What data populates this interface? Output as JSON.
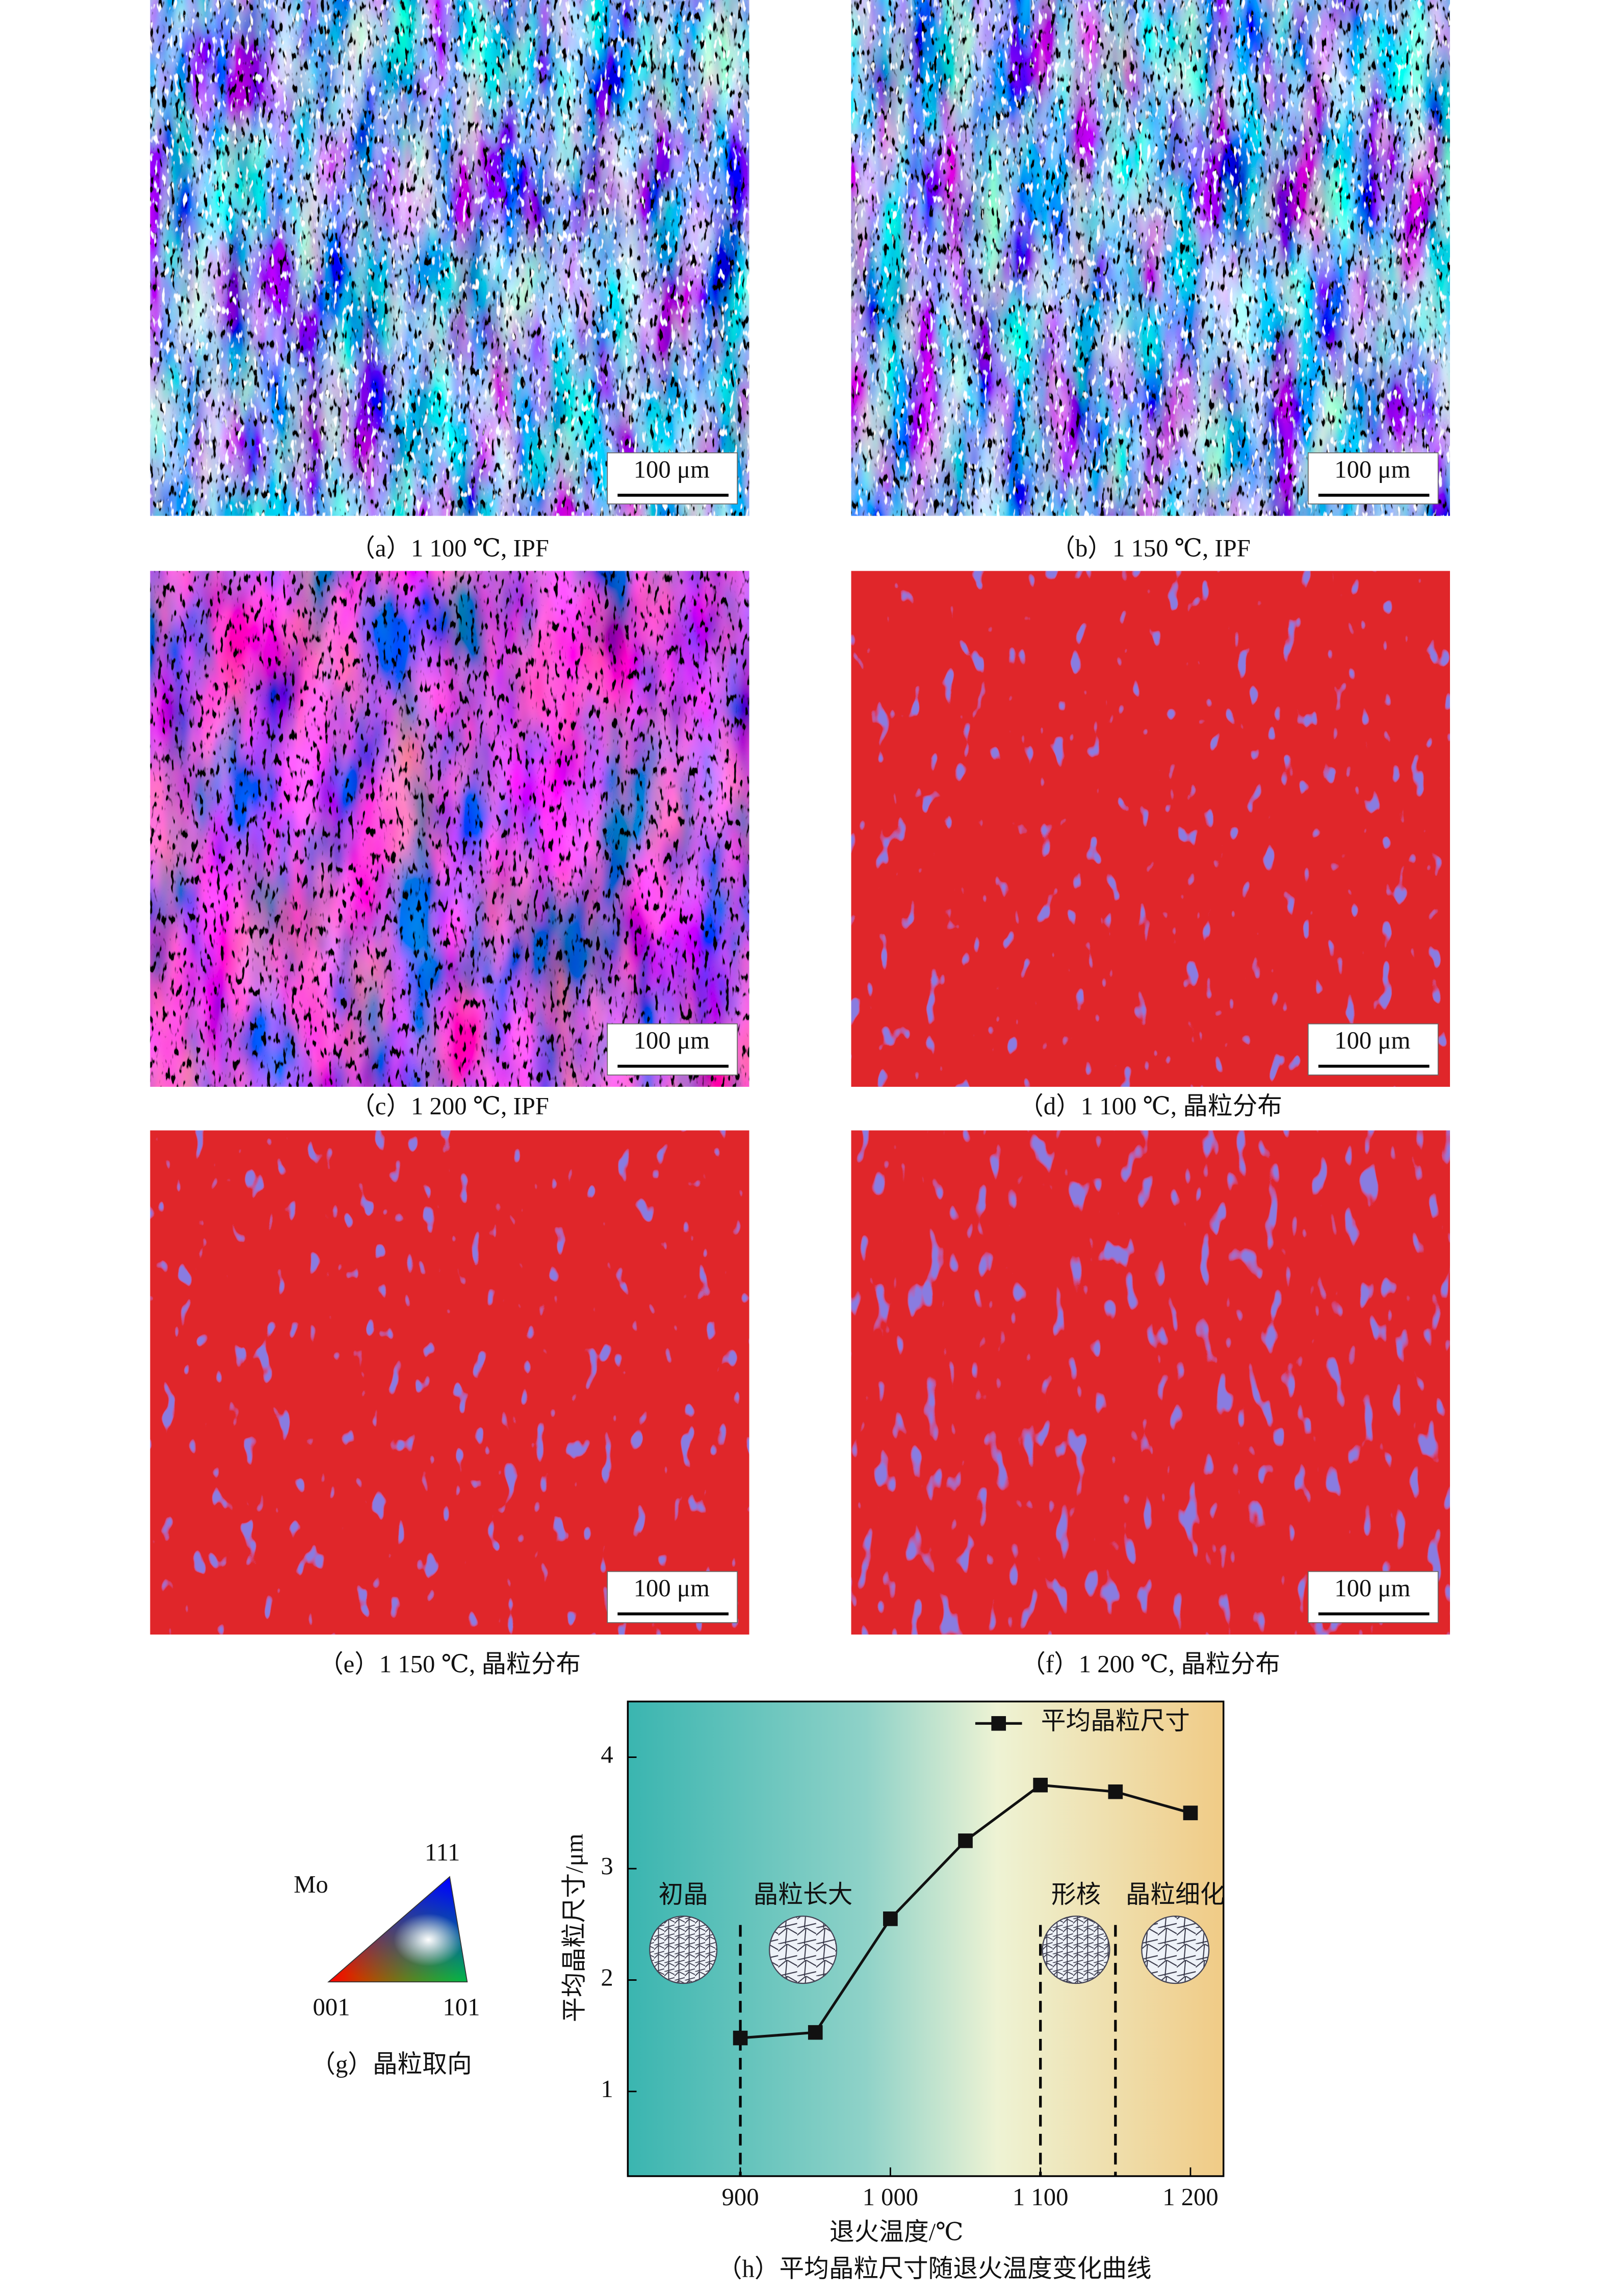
{
  "panels": [
    {
      "caption": "（a）1 100 ℃, IPF",
      "scale_bar": "100 μm"
    },
    {
      "caption": "（b）1 150 ℃, IPF",
      "scale_bar": "100 μm"
    },
    {
      "caption": "（c）1 200 ℃, IPF",
      "scale_bar": "100 μm"
    },
    {
      "caption": "（d）1 100 ℃, 晶粒分布",
      "scale_bar": "100 μm"
    },
    {
      "caption": "（e）1 150 ℃, 晶粒分布",
      "scale_bar": "100 μm"
    },
    {
      "caption": "（f）1 200 ℃, 晶粒分布",
      "scale_bar": "100 μm"
    }
  ],
  "orientation_legend": {
    "material": "Mo",
    "vertices": [
      "001",
      "101",
      "111"
    ],
    "caption": "（g）晶粒取向"
  },
  "chart_data": {
    "type": "line",
    "caption": "（h）平均晶粒尺寸随退火温度变化曲线",
    "x_label": "退火温度/℃",
    "y_label": "平均晶粒尺寸/μm",
    "x": [
      900,
      950,
      1000,
      1050,
      1100,
      1150,
      1200
    ],
    "series": [
      {
        "name": "平均晶粒尺寸",
        "color": "#111111",
        "values": [
          1.48,
          1.53,
          2.55,
          3.25,
          3.75,
          3.69,
          3.5
        ]
      }
    ],
    "xlim": [
      825,
      1222
    ],
    "ylim": [
      0.24,
      4.5
    ],
    "xticks": [
      900,
      {
        "value": 1000,
        "label": "1 000"
      },
      {
        "value": 1100,
        "label": "1 100"
      },
      {
        "value": 1200,
        "label": "1 200"
      }
    ],
    "yticks": [
      1,
      2,
      3,
      4
    ],
    "legend": "upper right",
    "stage_lines": [
      900,
      1100,
      1150
    ],
    "stages": [
      "初晶",
      "晶粒长大",
      "形核",
      "晶粒细化"
    ]
  }
}
